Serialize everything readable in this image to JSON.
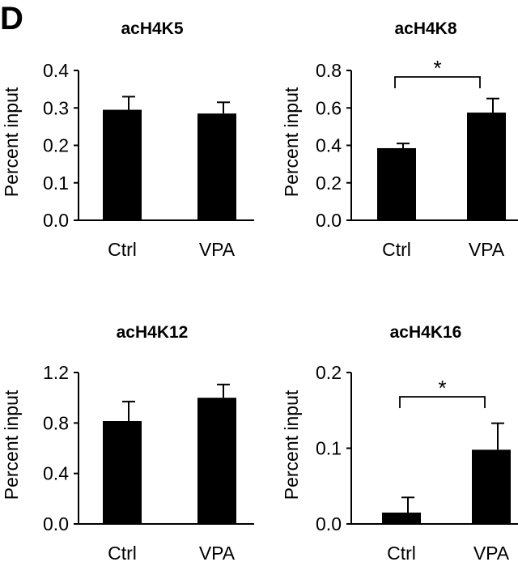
{
  "panel_label": "D",
  "chart_data": [
    {
      "type": "bar",
      "title": "acH4K5",
      "ylabel": "Percent input",
      "categories": [
        "Ctrl",
        "VPA"
      ],
      "values": [
        0.295,
        0.285
      ],
      "errors": [
        0.035,
        0.03
      ],
      "ylim": [
        0,
        0.4
      ],
      "yticks": [
        "0.0",
        "0.1",
        "0.2",
        "0.3",
        "0.4"
      ],
      "significance": null
    },
    {
      "type": "bar",
      "title": "acH4K8",
      "ylabel": "Percent input",
      "categories": [
        "Ctrl",
        "VPA"
      ],
      "values": [
        0.385,
        0.575
      ],
      "errors": [
        0.025,
        0.075
      ],
      "ylim": [
        0,
        0.8
      ],
      "yticks": [
        "0.0",
        "0.2",
        "0.4",
        "0.6",
        "0.8"
      ],
      "significance": "*"
    },
    {
      "type": "bar",
      "title": "acH4K12",
      "ylabel": "Percent input",
      "categories": [
        "Ctrl",
        "VPA"
      ],
      "values": [
        0.815,
        1.0
      ],
      "errors": [
        0.155,
        0.105
      ],
      "ylim": [
        0,
        1.2
      ],
      "yticks": [
        "0.0",
        "0.4",
        "0.8",
        "1.2"
      ],
      "significance": null
    },
    {
      "type": "bar",
      "title": "acH4K16",
      "ylabel": "Percent input",
      "categories": [
        "Ctrl",
        "VPA"
      ],
      "values": [
        0.015,
        0.098
      ],
      "errors": [
        0.02,
        0.035
      ],
      "ylim": [
        0,
        0.2
      ],
      "yticks": [
        "0.0",
        "0.1",
        "0.2"
      ],
      "significance": "*"
    }
  ]
}
